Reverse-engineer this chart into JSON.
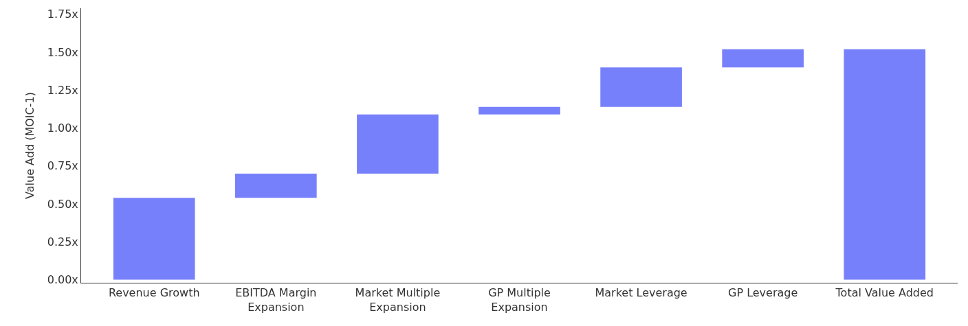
{
  "chart_data": {
    "type": "bar",
    "ylabel": "Value Add (MOIC-1)",
    "categories": [
      "Revenue Growth",
      "EBITDA Margin Expansion",
      "Market Multiple Expansion",
      "GP Multiple Expansion",
      "Market Leverage",
      "GP Leverage",
      "Total Value Added"
    ],
    "values": [
      0.54,
      0.16,
      0.39,
      0.05,
      0.26,
      0.12,
      1.52
    ],
    "base": [
      0,
      0.54,
      0.7,
      1.09,
      1.14,
      1.4,
      0
    ],
    "color": "#7780fb",
    "ylim": [
      -0.02,
      1.79
    ],
    "yticks": [
      {
        "value": 0,
        "label": "0.00x"
      },
      {
        "value": 0.25,
        "label": "0.25x"
      },
      {
        "value": 0.5,
        "label": "0.50x"
      },
      {
        "value": 0.75,
        "label": "0.75x"
      },
      {
        "value": 1.0,
        "label": "1.00x"
      },
      {
        "value": 1.25,
        "label": "1.25x"
      },
      {
        "value": 1.5,
        "label": "1.50x"
      },
      {
        "value": 1.75,
        "label": "1.75x"
      }
    ]
  }
}
